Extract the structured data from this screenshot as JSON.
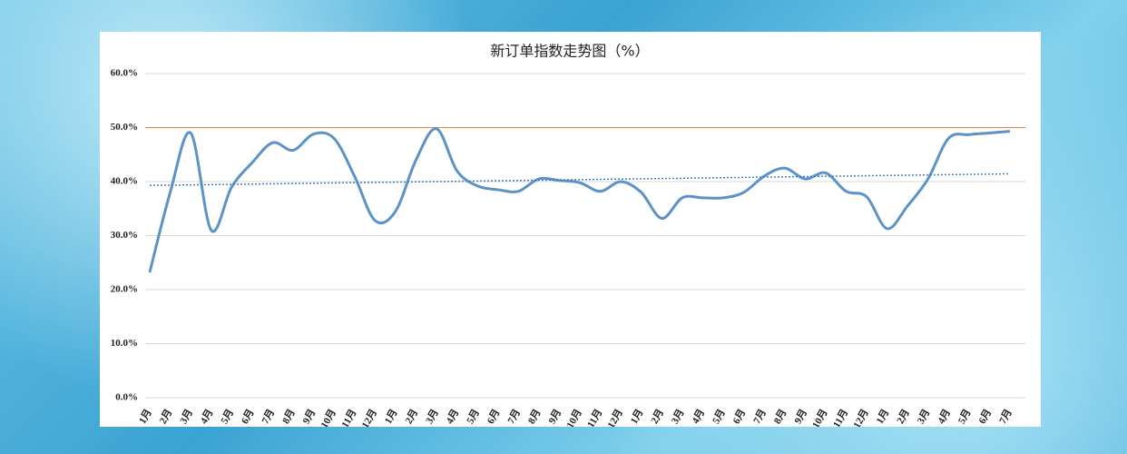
{
  "chart_data": {
    "type": "line",
    "title": "新订单指数走势图（%）",
    "categories": [
      "1月",
      "2月",
      "3月",
      "4月",
      "5月",
      "6月",
      "7月",
      "8月",
      "9月",
      "10月",
      "11月",
      "12月",
      "1月",
      "2月",
      "3月",
      "4月",
      "5月",
      "6月",
      "7月",
      "8月",
      "9月",
      "10月",
      "11月",
      "12月",
      "1月",
      "2月",
      "3月",
      "4月",
      "5月",
      "6月",
      "7月",
      "8月",
      "9月",
      "10月",
      "11月",
      "12月",
      "1月",
      "2月",
      "3月",
      "4月",
      "5月",
      "6月",
      "7月"
    ],
    "series": [
      {
        "name": "新订单指数",
        "color": "#5b93c7",
        "values": [
          23.2,
          38,
          49,
          31,
          39,
          43.5,
          47.2,
          45.8,
          48.8,
          48,
          41,
          32.8,
          34.5,
          44,
          49.8,
          42,
          39.2,
          38.5,
          38.2,
          40.5,
          40.2,
          39.8,
          38.2,
          40,
          38,
          33.2,
          37,
          37,
          37,
          38,
          41,
          42.5,
          40.5,
          41.6,
          38.2,
          37.2,
          31.3,
          35.5,
          40.5,
          48,
          48.7,
          49,
          49.3
        ]
      }
    ],
    "ylim": [
      0,
      60
    ],
    "yticks": [
      {
        "value": 0,
        "label": "0.0%"
      },
      {
        "value": 10,
        "label": "10.0%"
      },
      {
        "value": 20,
        "label": "20.0%"
      },
      {
        "value": 30,
        "label": "30.0%"
      },
      {
        "value": 40,
        "label": "40.0%"
      },
      {
        "value": 50,
        "label": "50.0%"
      },
      {
        "value": 60,
        "label": "60.0%"
      }
    ],
    "grid": true,
    "reference_line": {
      "value": 50,
      "color": "#e8833a"
    },
    "trendline": {
      "color": "#3f7fc4"
    }
  }
}
